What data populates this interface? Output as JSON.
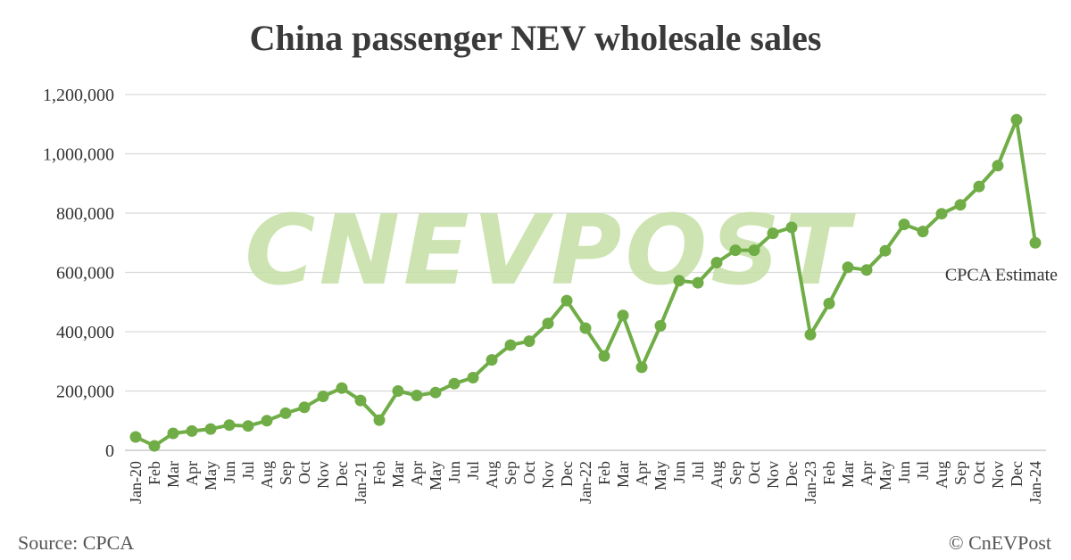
{
  "chart_data": {
    "type": "line",
    "title": "China passenger NEV wholesale sales",
    "xlabel": "",
    "ylabel": "",
    "ylim": [
      0,
      1200000
    ],
    "yticks": [
      "0",
      "200,000",
      "400,000",
      "600,000",
      "800,000",
      "1,000,000",
      "1,200,000"
    ],
    "ytick_values": [
      0,
      200000,
      400000,
      600000,
      800000,
      1000000,
      1200000
    ],
    "grid": true,
    "legend": "none",
    "line_color": "#70AD47",
    "categories": [
      "Jan-20",
      "Feb",
      "Mar",
      "Apr",
      "May",
      "Jun",
      "Jul",
      "Aug",
      "Sep",
      "Oct",
      "Nov",
      "Dec",
      "Jan-21",
      "Feb",
      "Mar",
      "Apr",
      "May",
      "Jun",
      "Jul",
      "Aug",
      "Sep",
      "Oct",
      "Nov",
      "Dec",
      "Jan-22",
      "Feb",
      "Mar",
      "Apr",
      "May",
      "Jun",
      "Jul",
      "Aug",
      "Sep",
      "Oct",
      "Nov",
      "Dec",
      "Jan-23",
      "Feb",
      "Mar",
      "Apr",
      "May",
      "Jun",
      "Jul",
      "Aug",
      "Sep",
      "Oct",
      "Nov",
      "Dec",
      "Jan-24"
    ],
    "series": [
      {
        "values": [
          45000,
          15000,
          57000,
          65000,
          72000,
          85000,
          82000,
          100000,
          125000,
          145000,
          182000,
          210000,
          168000,
          102000,
          200000,
          185000,
          195000,
          225000,
          245000,
          305000,
          355000,
          368000,
          428000,
          505000,
          412000,
          318000,
          455000,
          280000,
          420000,
          572000,
          565000,
          633000,
          675000,
          675000,
          732000,
          752000,
          390000,
          495000,
          617000,
          608000,
          673000,
          762000,
          738000,
          798000,
          828000,
          890000,
          960000,
          1115000,
          700000
        ]
      }
    ],
    "annotations": [
      {
        "text": "CPCA Estimate",
        "category_index": 48
      }
    ]
  },
  "footer": {
    "source": "Source: CPCA",
    "copyright": "© CnEVPost"
  },
  "watermark": {
    "text": "CNEVPOST",
    "color": "#C5E0A5"
  }
}
